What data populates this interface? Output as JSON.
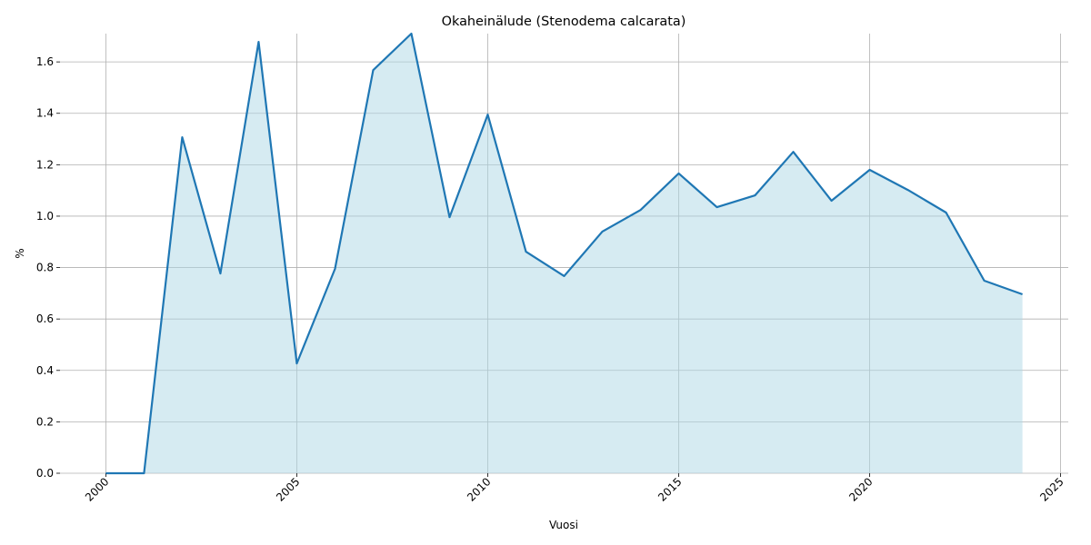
{
  "chart_data": {
    "type": "line",
    "title": "Okaheinälude (Stenodema calcarata)",
    "x_label": "Vuosi",
    "y_label": "%",
    "x": [
      2000,
      2001,
      2002,
      2003,
      2004,
      2005,
      2006,
      2007,
      2008,
      2009,
      2010,
      2011,
      2012,
      2013,
      2014,
      2015,
      2016,
      2017,
      2018,
      2019,
      2020,
      2021,
      2022,
      2023,
      2024
    ],
    "series": [
      {
        "name": "Okaheinälude (Stenodema calcarata)",
        "color": "#1f77b4",
        "fill_color": "#add8e6",
        "values": [
          0,
          0,
          1.307,
          0.777,
          1.678,
          0.427,
          0.795,
          1.568,
          1.71,
          0.996,
          1.395,
          0.862,
          0.767,
          0.94,
          1.024,
          1.166,
          1.035,
          1.081,
          1.25,
          1.06,
          1.18,
          1.102,
          1.014,
          0.749,
          0.696
        ]
      }
    ],
    "xlim": [
      1998.8,
      2025.2
    ],
    "xticks": [
      2000,
      2005,
      2010,
      2015,
      2020,
      2025
    ],
    "ylim": [
      0,
      1.71
    ],
    "yticks": [
      {
        "value": 0,
        "label": "0.0"
      },
      0.2,
      0.4,
      0.6,
      0.8,
      {
        "value": 1,
        "label": "1.0"
      },
      1.2,
      1.4,
      1.6
    ],
    "grid": true
  }
}
